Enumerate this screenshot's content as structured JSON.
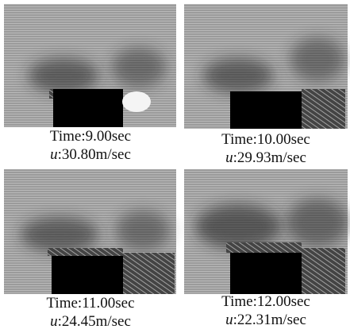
{
  "panels": [
    {
      "time": "Time:9.00sec",
      "symbol": "u",
      "speed": ":30.80m/sec"
    },
    {
      "time": "Time:10.00sec",
      "symbol": "u",
      "speed": ":29.93m/sec"
    },
    {
      "time": "Time:11.00sec",
      "symbol": "u",
      "speed": ":24.45m/sec"
    },
    {
      "time": "Time:12.00sec",
      "symbol": "u",
      "speed": ":22.31m/sec"
    }
  ]
}
